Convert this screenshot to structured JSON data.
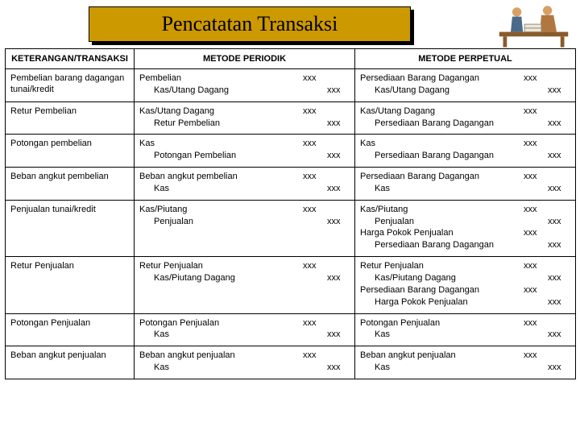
{
  "title": "Pencatatan Transaksi",
  "headers": {
    "col1": "KETERANGAN/TRANSAKSI",
    "col2": "METODE PERIODIK",
    "col3": "METODE PERPETUAL"
  },
  "amount_placeholder": "xxx",
  "rows": [
    {
      "ket": "Pembelian barang dagangan tunai/kredit",
      "periodik": [
        {
          "label": "Pembelian",
          "debit": true
        },
        {
          "label": "Kas/Utang Dagang",
          "credit": true,
          "indent": true
        }
      ],
      "perpetual": [
        {
          "label": "Persediaan Barang Dagangan",
          "debit": true
        },
        {
          "label": "Kas/Utang Dagang",
          "credit": true,
          "indent": true
        }
      ]
    },
    {
      "ket": "Retur Pembelian",
      "periodik": [
        {
          "label": "Kas/Utang Dagang",
          "debit": true
        },
        {
          "label": "Retur Pembelian",
          "credit": true,
          "indent": true
        }
      ],
      "perpetual": [
        {
          "label": "Kas/Utang Dagang",
          "debit": true
        },
        {
          "label": "Persediaan Barang Dagangan",
          "credit": true,
          "indent": true
        }
      ]
    },
    {
      "ket": "Potongan pembelian",
      "periodik": [
        {
          "label": "Kas",
          "debit": true
        },
        {
          "label": "Potongan Pembelian",
          "credit": true,
          "indent": true
        }
      ],
      "perpetual": [
        {
          "label": "Kas",
          "debit": true
        },
        {
          "label": "Persediaan Barang Dagangan",
          "credit": true,
          "indent": true
        }
      ]
    },
    {
      "ket": "Beban angkut pembelian",
      "periodik": [
        {
          "label": "Beban angkut pembelian",
          "debit": true
        },
        {
          "label": "Kas",
          "credit": true,
          "indent": true
        }
      ],
      "perpetual": [
        {
          "label": "Persediaan Barang Dagangan",
          "debit": true
        },
        {
          "label": "Kas",
          "credit": true,
          "indent": true
        }
      ]
    },
    {
      "ket": "Penjualan tunai/kredit",
      "periodik": [
        {
          "label": "Kas/Piutang",
          "debit": true
        },
        {
          "label": "Penjualan",
          "credit": true,
          "indent": true
        }
      ],
      "perpetual": [
        {
          "label": "Kas/Piutang",
          "debit": true
        },
        {
          "label": "Penjualan",
          "credit": true,
          "indent": true
        },
        {
          "label": "Harga Pokok Penjualan",
          "debit": true
        },
        {
          "label": "Persediaan Barang Dagangan",
          "credit": true,
          "indent": true
        }
      ]
    },
    {
      "ket": "Retur Penjualan",
      "periodik": [
        {
          "label": "Retur Penjualan",
          "debit": true
        },
        {
          "label": "Kas/Piutang Dagang",
          "credit": true,
          "indent": true
        }
      ],
      "perpetual": [
        {
          "label": "Retur Penjualan",
          "debit": true
        },
        {
          "label": "Kas/Piutang Dagang",
          "credit": true,
          "indent": true
        },
        {
          "label": "Persediaan Barang Dagangan",
          "debit": true
        },
        {
          "label": "Harga Pokok Penjualan",
          "credit": true,
          "indent": true
        }
      ]
    },
    {
      "ket": "Potongan Penjualan",
      "periodik": [
        {
          "label": "Potongan Penjualan",
          "debit": true
        },
        {
          "label": "Kas",
          "credit": true,
          "indent": true
        }
      ],
      "perpetual": [
        {
          "label": "Potongan Penjualan",
          "debit": true
        },
        {
          "label": "Kas",
          "credit": true,
          "indent": true
        }
      ]
    },
    {
      "ket": "Beban angkut penjualan",
      "periodik": [
        {
          "label": "Beban angkut penjualan",
          "debit": true
        },
        {
          "label": "Kas",
          "credit": true,
          "indent": true
        }
      ],
      "perpetual": [
        {
          "label": "Beban angkut penjualan",
          "debit": true
        },
        {
          "label": "Kas",
          "credit": true,
          "indent": true
        }
      ]
    }
  ],
  "colors": {
    "title_bg": "#cc9900",
    "border": "#000000",
    "text": "#000000",
    "bg": "#ffffff"
  }
}
